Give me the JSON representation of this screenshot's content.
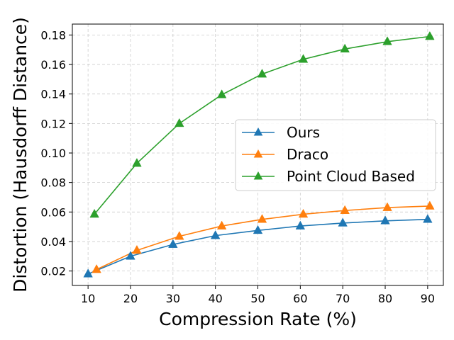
{
  "chart_data": {
    "type": "line",
    "title": "",
    "xlabel": "Compression Rate (%)",
    "ylabel": "Distortion (Hausdorff Distance)",
    "xlim": [
      6.3,
      93.7
    ],
    "ylim": [
      0.0102,
      0.1874
    ],
    "xticks": [
      10,
      20,
      30,
      40,
      50,
      60,
      70,
      80,
      90
    ],
    "yticks": [
      0.02,
      0.04,
      0.06,
      0.08,
      0.1,
      0.12,
      0.14,
      0.16,
      0.18
    ],
    "xtick_labels": [
      "10",
      "20",
      "30",
      "40",
      "50",
      "60",
      "70",
      "80",
      "90"
    ],
    "ytick_labels": [
      "0.02",
      "0.04",
      "0.06",
      "0.08",
      "0.10",
      "0.12",
      "0.14",
      "0.16",
      "0.18"
    ],
    "grid": true,
    "legend_position": "center-right",
    "series": [
      {
        "name": "Ours",
        "color": "#1f77b4",
        "marker": "triangle-up",
        "x": [
          10,
          20,
          30,
          40,
          50,
          60,
          70,
          80,
          90
        ],
        "y": [
          0.018,
          0.03,
          0.038,
          0.044,
          0.0475,
          0.0505,
          0.0525,
          0.054,
          0.055
        ]
      },
      {
        "name": "Draco",
        "color": "#ff7f0e",
        "marker": "triangle-up",
        "x": [
          12,
          21.5,
          31.5,
          41.5,
          51,
          60.7,
          70.5,
          80.5,
          90.5
        ],
        "y": [
          0.021,
          0.034,
          0.0435,
          0.0505,
          0.055,
          0.0585,
          0.061,
          0.063,
          0.064
        ]
      },
      {
        "name": "Point Cloud Based",
        "color": "#2ca02c",
        "marker": "triangle-up",
        "x": [
          11.5,
          21.5,
          31.5,
          41.5,
          51,
          60.7,
          70.5,
          80.5,
          90.5
        ],
        "y": [
          0.0585,
          0.093,
          0.12,
          0.1395,
          0.1535,
          0.1635,
          0.1705,
          0.1755,
          0.179
        ]
      }
    ]
  }
}
